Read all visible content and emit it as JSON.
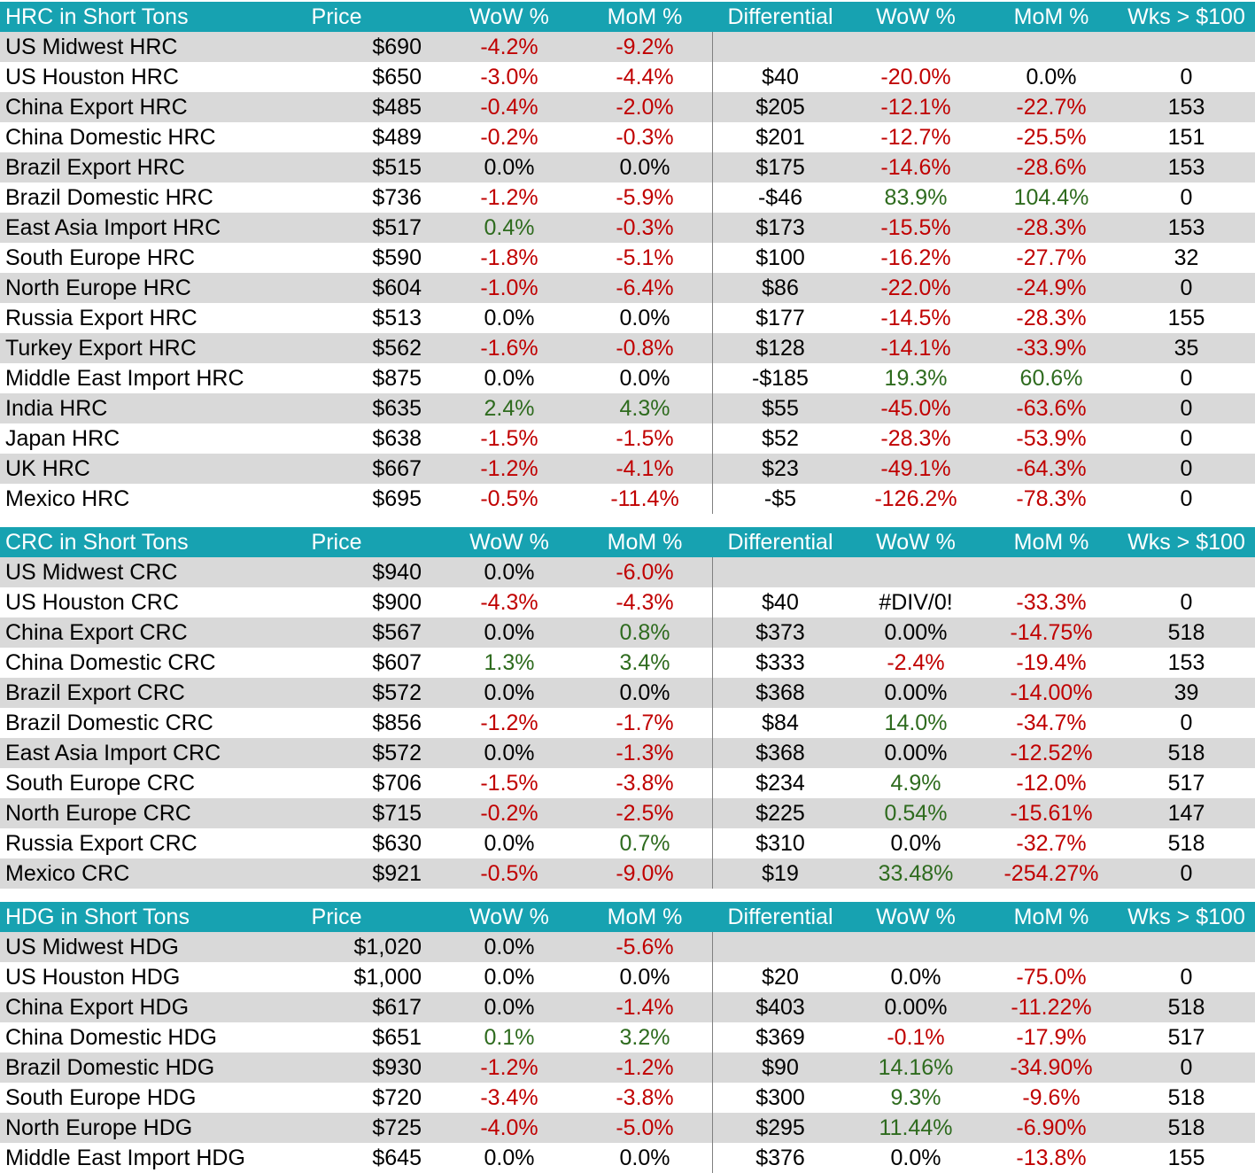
{
  "colors": {
    "header_bg": "#17a2b1",
    "stripe": "#d9d9d9",
    "negative": "#c00000",
    "positive": "#2e6b1e"
  },
  "sections": [
    {
      "id": "hrc",
      "header": {
        "name": "HRC in Short Tons",
        "price": "Price",
        "wow": "WoW %",
        "mom": "MoM %",
        "diff": "Differential",
        "diff_wow": "WoW %",
        "diff_mom": "MoM %",
        "wks": "Wks > $100"
      },
      "rows": [
        {
          "name": "US Midwest HRC",
          "price": "$690",
          "wow": "-4.2%",
          "mom": "-9.2%",
          "diff": "",
          "dwow": "",
          "dmom": "",
          "wks": ""
        },
        {
          "name": "US Houston HRC",
          "price": "$650",
          "wow": "-3.0%",
          "mom": "-4.4%",
          "diff": "$40",
          "dwow": "-20.0%",
          "dmom": "0.0%",
          "wks": "0"
        },
        {
          "name": "China Export HRC",
          "price": "$485",
          "wow": "-0.4%",
          "mom": "-2.0%",
          "diff": "$205",
          "dwow": "-12.1%",
          "dmom": "-22.7%",
          "wks": "153"
        },
        {
          "name": "China Domestic HRC",
          "price": "$489",
          "wow": "-0.2%",
          "mom": "-0.3%",
          "diff": "$201",
          "dwow": "-12.7%",
          "dmom": "-25.5%",
          "wks": "151"
        },
        {
          "name": "Brazil Export HRC",
          "price": "$515",
          "wow": "0.0%",
          "mom": "0.0%",
          "diff": "$175",
          "dwow": "-14.6%",
          "dmom": "-28.6%",
          "wks": "153"
        },
        {
          "name": "Brazil Domestic HRC",
          "price": "$736",
          "wow": "-1.2%",
          "mom": "-5.9%",
          "diff": "-$46",
          "dwow": "83.9%",
          "dmom": "104.4%",
          "wks": "0"
        },
        {
          "name": "East Asia Import HRC",
          "price": "$517",
          "wow": "0.4%",
          "mom": "-0.3%",
          "diff": "$173",
          "dwow": "-15.5%",
          "dmom": "-28.3%",
          "wks": "153"
        },
        {
          "name": "South Europe HRC",
          "price": "$590",
          "wow": "-1.8%",
          "mom": "-5.1%",
          "diff": "$100",
          "dwow": "-16.2%",
          "dmom": "-27.7%",
          "wks": "32"
        },
        {
          "name": "North Europe HRC",
          "price": "$604",
          "wow": "-1.0%",
          "mom": "-6.4%",
          "diff": "$86",
          "dwow": "-22.0%",
          "dmom": "-24.9%",
          "wks": "0"
        },
        {
          "name": "Russia Export HRC",
          "price": "$513",
          "wow": "0.0%",
          "mom": "0.0%",
          "diff": "$177",
          "dwow": "-14.5%",
          "dmom": "-28.3%",
          "wks": "155"
        },
        {
          "name": "Turkey Export HRC",
          "price": "$562",
          "wow": "-1.6%",
          "mom": "-0.8%",
          "diff": "$128",
          "dwow": "-14.1%",
          "dmom": "-33.9%",
          "wks": "35"
        },
        {
          "name": "Middle East Import HRC",
          "price": "$875",
          "wow": "0.0%",
          "mom": "0.0%",
          "diff": "-$185",
          "dwow": "19.3%",
          "dmom": "60.6%",
          "wks": "0"
        },
        {
          "name": "India HRC",
          "price": "$635",
          "wow": "2.4%",
          "mom": "4.3%",
          "diff": "$55",
          "dwow": "-45.0%",
          "dmom": "-63.6%",
          "wks": "0"
        },
        {
          "name": "Japan HRC",
          "price": "$638",
          "wow": "-1.5%",
          "mom": "-1.5%",
          "diff": "$52",
          "dwow": "-28.3%",
          "dmom": "-53.9%",
          "wks": "0"
        },
        {
          "name": "UK HRC",
          "price": "$667",
          "wow": "-1.2%",
          "mom": "-4.1%",
          "diff": "$23",
          "dwow": "-49.1%",
          "dmom": "-64.3%",
          "wks": "0"
        },
        {
          "name": "Mexico HRC",
          "price": "$695",
          "wow": "-0.5%",
          "mom": "-11.4%",
          "diff": "-$5",
          "dwow": "-126.2%",
          "dmom": "-78.3%",
          "wks": "0"
        }
      ]
    },
    {
      "id": "crc",
      "header": {
        "name": "CRC in Short Tons",
        "price": "Price",
        "wow": "WoW %",
        "mom": "MoM %",
        "diff": "Differential",
        "diff_wow": "WoW %",
        "diff_mom": "MoM %",
        "wks": "Wks > $100"
      },
      "rows": [
        {
          "name": "US Midwest CRC",
          "price": "$940",
          "wow": "0.0%",
          "mom": "-6.0%",
          "diff": "",
          "dwow": "",
          "dmom": "",
          "wks": ""
        },
        {
          "name": "US Houston CRC",
          "price": "$900",
          "wow": "-4.3%",
          "mom": "-4.3%",
          "diff": "$40",
          "dwow": "#DIV/0!",
          "dmom": "-33.3%",
          "wks": "0"
        },
        {
          "name": "China Export CRC",
          "price": "$567",
          "wow": "0.0%",
          "mom": "0.8%",
          "diff": "$373",
          "dwow": "0.00%",
          "dmom": "-14.75%",
          "wks": "518"
        },
        {
          "name": "China Domestic CRC",
          "price": "$607",
          "wow": "1.3%",
          "mom": "3.4%",
          "diff": "$333",
          "dwow": "-2.4%",
          "dmom": "-19.4%",
          "wks": "153"
        },
        {
          "name": "Brazil Export CRC",
          "price": "$572",
          "wow": "0.0%",
          "mom": "0.0%",
          "diff": "$368",
          "dwow": "0.00%",
          "dmom": "-14.00%",
          "wks": "39"
        },
        {
          "name": "Brazil Domestic CRC",
          "price": "$856",
          "wow": "-1.2%",
          "mom": "-1.7%",
          "diff": "$84",
          "dwow": "14.0%",
          "dmom": "-34.7%",
          "wks": "0"
        },
        {
          "name": "East Asia Import CRC",
          "price": "$572",
          "wow": "0.0%",
          "mom": "-1.3%",
          "diff": "$368",
          "dwow": "0.00%",
          "dmom": "-12.52%",
          "wks": "518"
        },
        {
          "name": "South Europe CRC",
          "price": "$706",
          "wow": "-1.5%",
          "mom": "-3.8%",
          "diff": "$234",
          "dwow": "4.9%",
          "dmom": "-12.0%",
          "wks": "517"
        },
        {
          "name": "North Europe CRC",
          "price": "$715",
          "wow": "-0.2%",
          "mom": "-2.5%",
          "diff": "$225",
          "dwow": "0.54%",
          "dmom": "-15.61%",
          "wks": "147"
        },
        {
          "name": "Russia Export CRC",
          "price": "$630",
          "wow": "0.0%",
          "mom": "0.7%",
          "diff": "$310",
          "dwow": "0.0%",
          "dmom": "-32.7%",
          "wks": "518"
        },
        {
          "name": "Mexico CRC",
          "price": "$921",
          "wow": "-0.5%",
          "mom": "-9.0%",
          "diff": "$19",
          "dwow": "33.48%",
          "dmom": "-254.27%",
          "wks": "0"
        }
      ]
    },
    {
      "id": "hdg",
      "header": {
        "name": "HDG in Short Tons",
        "price": "Price",
        "wow": "WoW %",
        "mom": "MoM %",
        "diff": "Differential",
        "diff_wow": "WoW %",
        "diff_mom": "MoM %",
        "wks": "Wks > $100"
      },
      "rows": [
        {
          "name": "US Midwest HDG",
          "price": "$1,020",
          "wow": "0.0%",
          "mom": "-5.6%",
          "diff": "",
          "dwow": "",
          "dmom": "",
          "wks": ""
        },
        {
          "name": "US Houston HDG",
          "price": "$1,000",
          "wow": "0.0%",
          "mom": "0.0%",
          "diff": "$20",
          "dwow": "0.0%",
          "dmom": "-75.0%",
          "wks": "0"
        },
        {
          "name": "China Export HDG",
          "price": "$617",
          "wow": "0.0%",
          "mom": "-1.4%",
          "diff": "$403",
          "dwow": "0.00%",
          "dmom": "-11.22%",
          "wks": "518"
        },
        {
          "name": "China Domestic HDG",
          "price": "$651",
          "wow": "0.1%",
          "mom": "3.2%",
          "diff": "$369",
          "dwow": "-0.1%",
          "dmom": "-17.9%",
          "wks": "517"
        },
        {
          "name": "Brazil Domestic HDG",
          "price": "$930",
          "wow": "-1.2%",
          "mom": "-1.2%",
          "diff": "$90",
          "dwow": "14.16%",
          "dmom": "-34.90%",
          "wks": "0"
        },
        {
          "name": "South Europe HDG",
          "price": "$720",
          "wow": "-3.4%",
          "mom": "-3.8%",
          "diff": "$300",
          "dwow": "9.3%",
          "dmom": "-9.6%",
          "wks": "518"
        },
        {
          "name": "North Europe HDG",
          "price": "$725",
          "wow": "-4.0%",
          "mom": "-5.0%",
          "diff": "$295",
          "dwow": "11.44%",
          "dmom": "-6.90%",
          "wks": "518"
        },
        {
          "name": "Middle East Import HDG",
          "price": "$645",
          "wow": "0.0%",
          "mom": "0.0%",
          "diff": "$376",
          "dwow": "0.0%",
          "dmom": "-13.8%",
          "wks": "155"
        }
      ]
    }
  ]
}
